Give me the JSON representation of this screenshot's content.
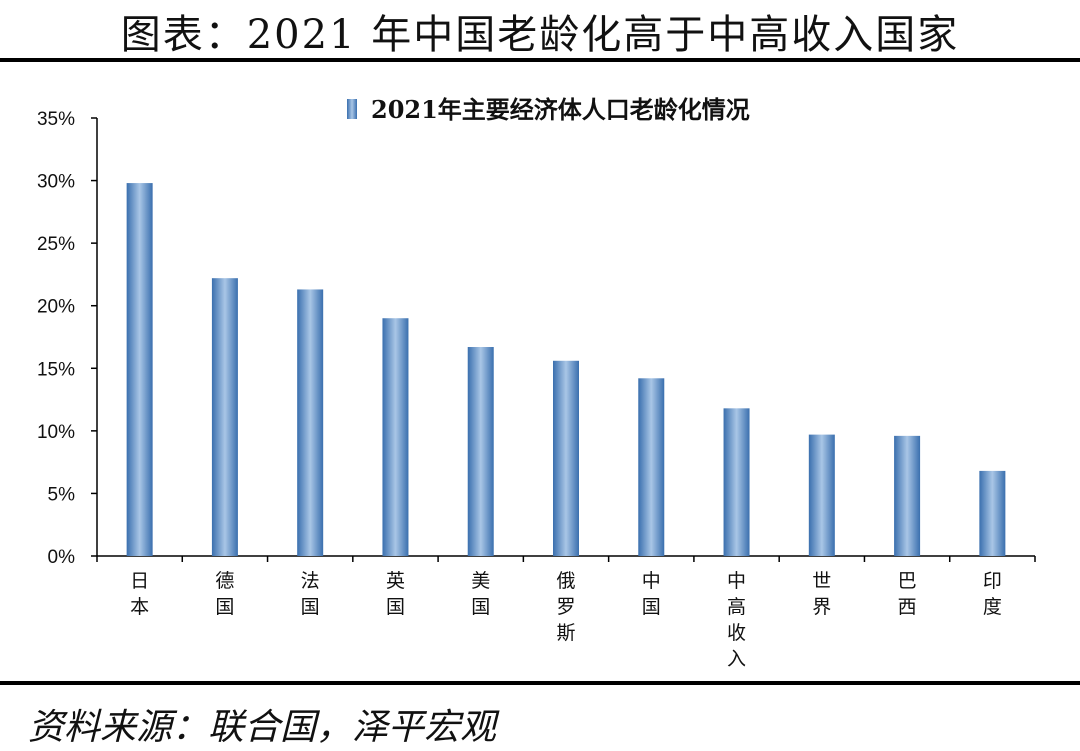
{
  "page": {
    "title": "图表：2021 年中国老龄化高于中高收入国家",
    "source": "资料来源：联合国，泽平宏观"
  },
  "colors": {
    "bar_dark": "#3a6fae",
    "bar_light": "#a9c6e6",
    "axis": "#000000"
  },
  "chart_data": {
    "type": "bar",
    "title": "",
    "legend": [
      "2021年主要经济体人口老龄化情况"
    ],
    "categories": [
      "日本",
      "德国",
      "法国",
      "英国",
      "美国",
      "俄罗斯",
      "中国",
      "中高收入",
      "世界",
      "巴西",
      "印度"
    ],
    "series": [
      {
        "name": "2021年主要经济体人口老龄化情况",
        "values": [
          29.8,
          22.2,
          21.3,
          19.0,
          16.7,
          15.6,
          14.2,
          11.8,
          9.7,
          9.6,
          6.8
        ]
      }
    ],
    "ylim": [
      0,
      35
    ],
    "yticks": [
      0,
      5,
      10,
      15,
      20,
      25,
      30,
      35
    ],
    "ytick_labels": [
      "0%",
      "5%",
      "10%",
      "15%",
      "20%",
      "25%",
      "30%",
      "35%"
    ],
    "xlabel": "",
    "ylabel": ""
  }
}
